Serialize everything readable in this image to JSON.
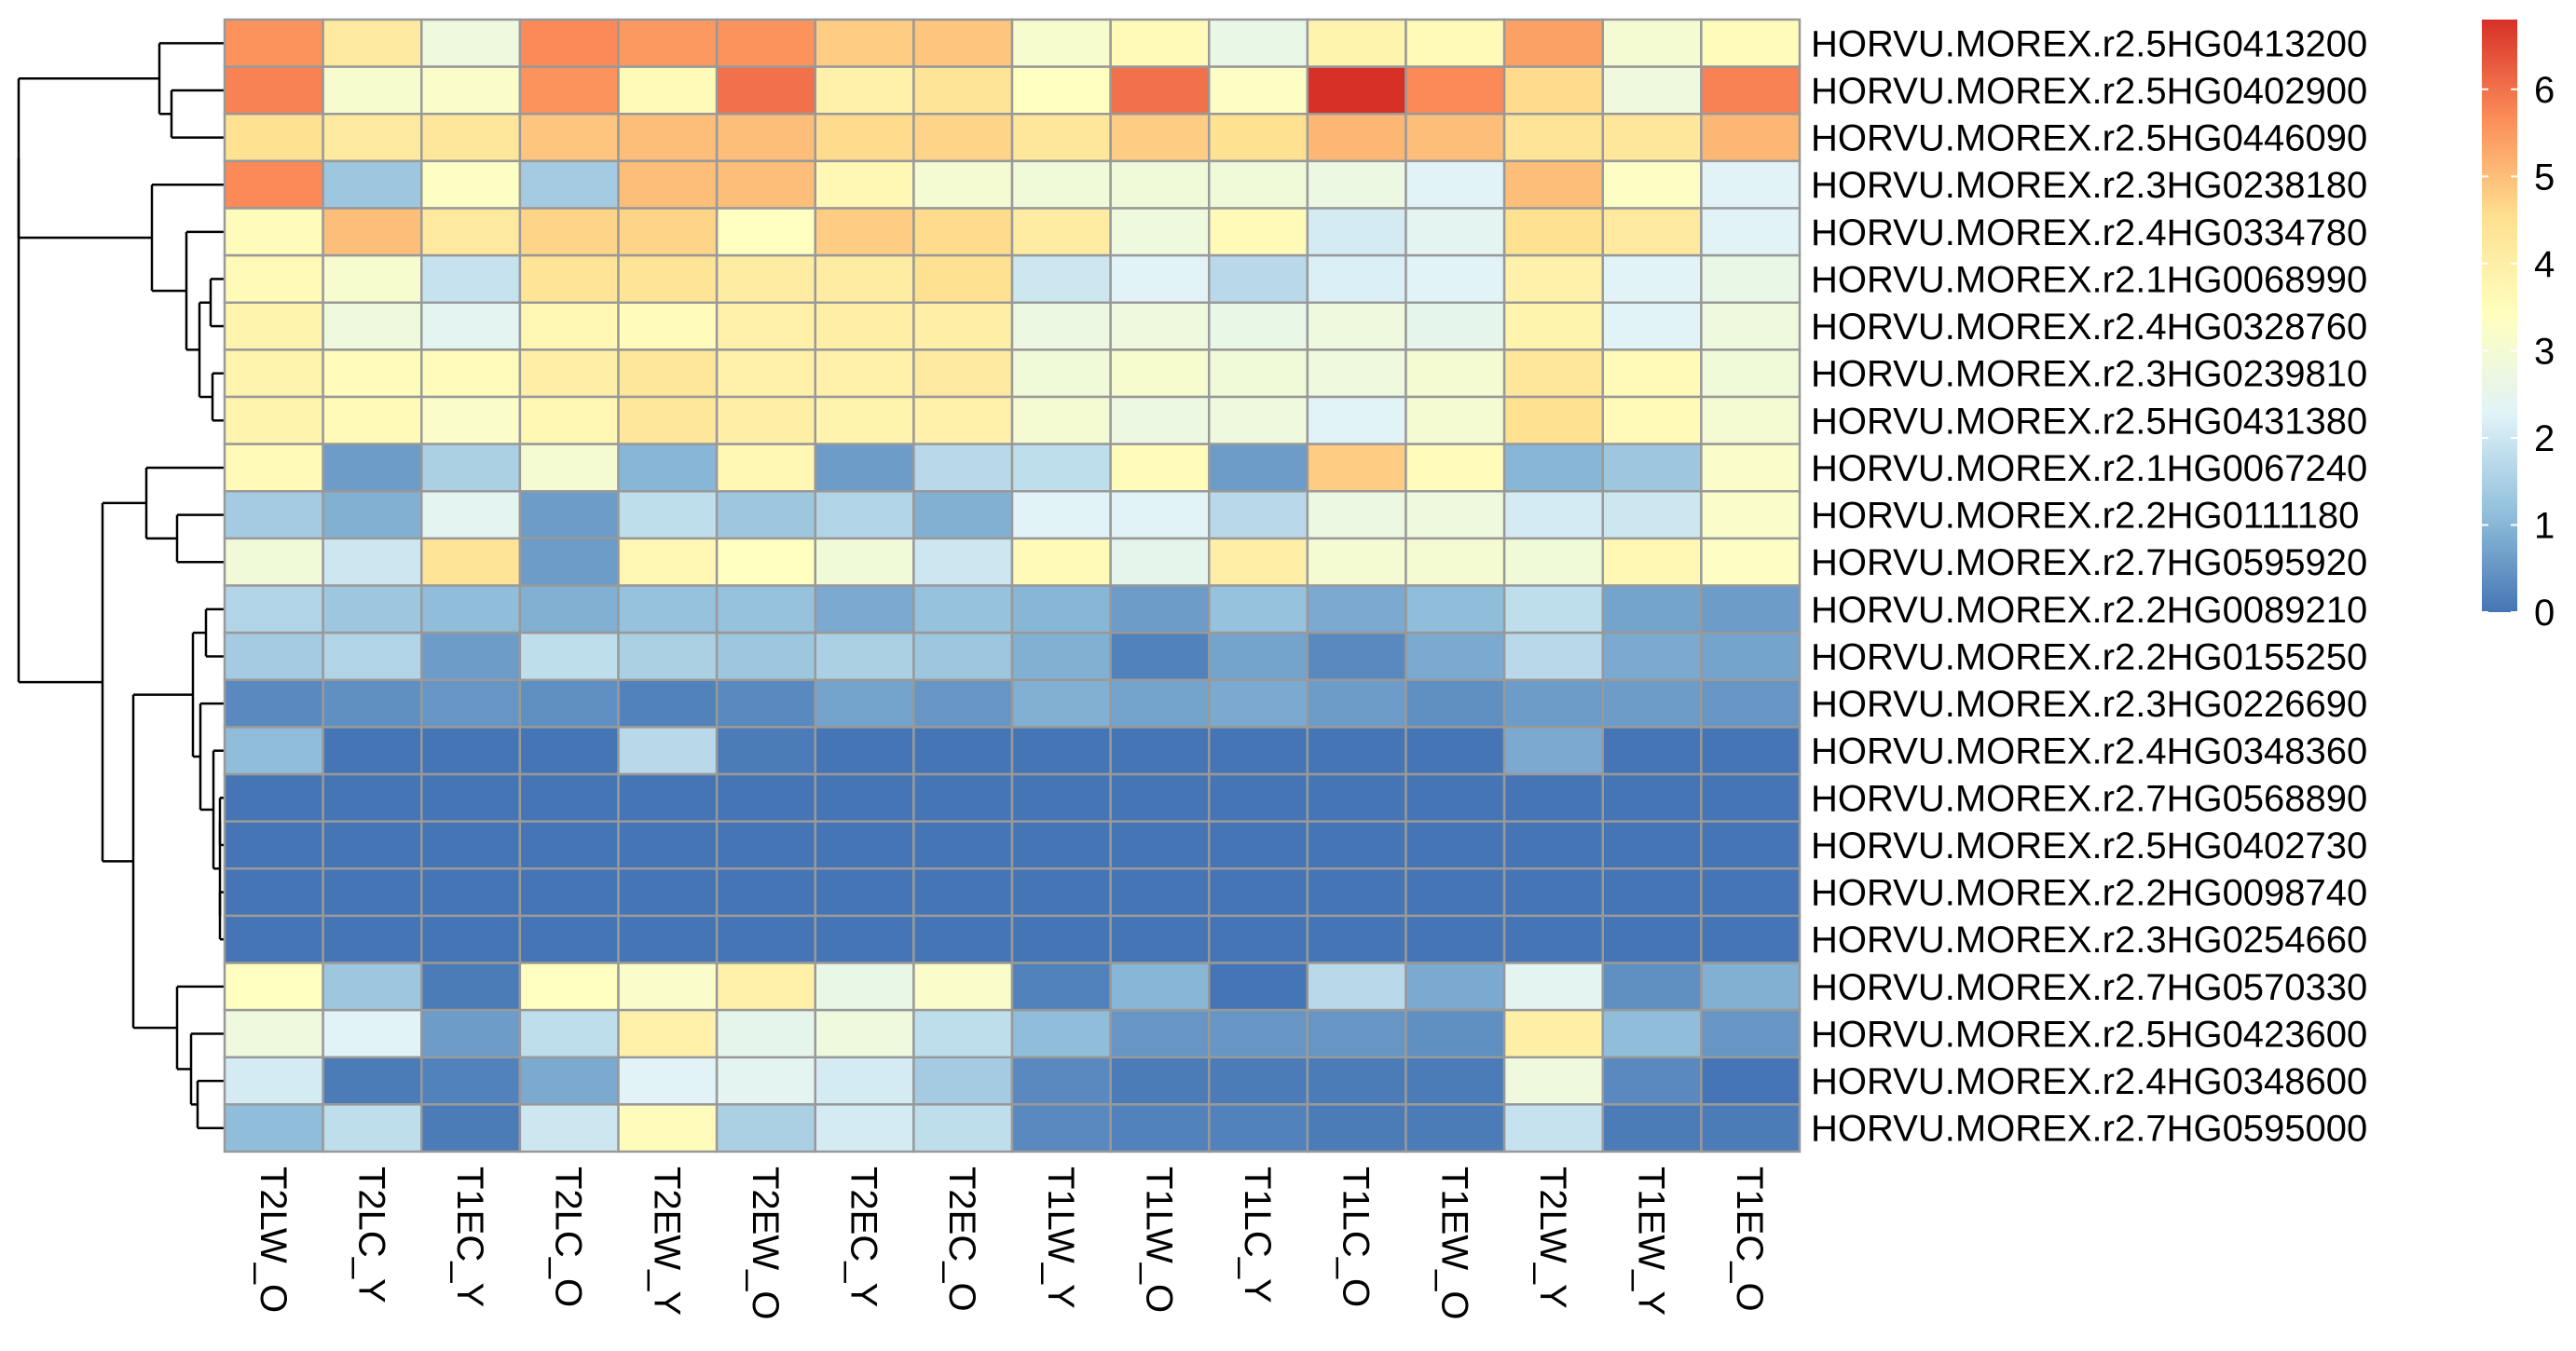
{
  "chart_data": {
    "type": "heatmap",
    "title": "",
    "xlabel": "",
    "ylabel": "",
    "columns": [
      "T2LW_O",
      "T2LC_Y",
      "T1EC_Y",
      "T2LC_O",
      "T2EW_Y",
      "T2EW_O",
      "T2EC_Y",
      "T2EC_O",
      "T1LW_Y",
      "T1LW_O",
      "T1LC_Y",
      "T1LC_O",
      "T1EW_O",
      "T2LW_Y",
      "T1EW_Y",
      "T1EC_O"
    ],
    "rows": [
      "HORVU.MOREX.r2.5HG0413200",
      "HORVU.MOREX.r2.5HG0402900",
      "HORVU.MOREX.r2.5HG0446090",
      "HORVU.MOREX.r2.3HG0238180",
      "HORVU.MOREX.r2.4HG0334780",
      "HORVU.MOREX.r2.1HG0068990",
      "HORVU.MOREX.r2.4HG0328760",
      "HORVU.MOREX.r2.3HG0239810",
      "HORVU.MOREX.r2.5HG0431380",
      "HORVU.MOREX.r2.1HG0067240",
      "HORVU.MOREX.r2.2HG0111180",
      "HORVU.MOREX.r2.7HG0595920",
      "HORVU.MOREX.r2.2HG0089210",
      "HORVU.MOREX.r2.2HG0155250",
      "HORVU.MOREX.r2.3HG0226690",
      "HORVU.MOREX.r2.4HG0348360",
      "HORVU.MOREX.r2.7HG0568890",
      "HORVU.MOREX.r2.5HG0402730",
      "HORVU.MOREX.r2.2HG0098740",
      "HORVU.MOREX.r2.3HG0254660",
      "HORVU.MOREX.r2.7HG0570330",
      "HORVU.MOREX.r2.5HG0423600",
      "HORVU.MOREX.r2.4HG0348600",
      "HORVU.MOREX.r2.7HG0595000"
    ],
    "values": [
      [
        5.6,
        4.2,
        2.8,
        5.7,
        5.5,
        5.6,
        4.8,
        4.9,
        3.1,
        3.6,
        2.6,
        3.8,
        3.6,
        5.4,
        3.0,
        3.5
      ],
      [
        5.8,
        3.1,
        3.2,
        5.6,
        3.6,
        6.0,
        3.9,
        4.4,
        3.4,
        6.0,
        3.3,
        6.8,
        5.7,
        4.6,
        2.8,
        5.8
      ],
      [
        4.5,
        4.2,
        4.3,
        4.9,
        5.0,
        5.0,
        4.6,
        4.7,
        4.3,
        4.8,
        4.5,
        5.1,
        5.0,
        4.4,
        4.3,
        5.1
      ],
      [
        5.7,
        1.3,
        3.3,
        1.4,
        5.0,
        5.0,
        3.7,
        3.0,
        2.9,
        2.9,
        2.9,
        2.7,
        2.3,
        5.0,
        3.3,
        2.3
      ],
      [
        3.5,
        5.0,
        4.2,
        4.7,
        4.7,
        3.4,
        4.8,
        4.6,
        4.1,
        2.8,
        3.6,
        2.1,
        2.4,
        4.5,
        4.2,
        2.3
      ],
      [
        3.6,
        3.1,
        1.9,
        4.4,
        4.4,
        4.1,
        4.1,
        4.5,
        2.0,
        2.3,
        1.7,
        2.2,
        2.3,
        3.9,
        2.3,
        2.6
      ],
      [
        3.8,
        2.8,
        2.4,
        3.7,
        3.5,
        3.9,
        4.0,
        4.0,
        2.7,
        2.8,
        2.6,
        2.8,
        2.5,
        3.8,
        2.3,
        2.8
      ],
      [
        3.8,
        3.5,
        3.5,
        4.0,
        4.3,
        3.9,
        3.9,
        4.2,
        2.9,
        3.1,
        2.9,
        2.8,
        3.0,
        4.3,
        3.6,
        2.9
      ],
      [
        3.8,
        3.6,
        3.2,
        3.7,
        4.3,
        4.0,
        3.8,
        3.9,
        3.0,
        2.7,
        2.8,
        2.3,
        3.0,
        4.5,
        3.6,
        3.0
      ],
      [
        3.6,
        0.6,
        1.5,
        3.0,
        1.0,
        3.7,
        0.6,
        1.7,
        1.8,
        3.5,
        0.6,
        4.8,
        3.5,
        1.0,
        1.3,
        3.2
      ],
      [
        1.4,
        0.9,
        2.4,
        0.6,
        1.8,
        1.3,
        1.6,
        0.9,
        2.3,
        2.3,
        1.7,
        2.7,
        2.8,
        2.1,
        2.0,
        3.2
      ],
      [
        2.9,
        2.0,
        4.4,
        0.6,
        3.7,
        3.4,
        2.9,
        2.0,
        3.6,
        2.5,
        4.0,
        3.0,
        3.0,
        2.9,
        3.7,
        3.3
      ],
      [
        1.6,
        1.3,
        1.1,
        0.9,
        1.2,
        1.2,
        0.8,
        1.2,
        1.0,
        0.6,
        1.2,
        0.8,
        1.1,
        1.8,
        0.7,
        0.6
      ],
      [
        1.4,
        1.6,
        0.6,
        1.8,
        1.5,
        1.3,
        1.5,
        1.3,
        0.9,
        0.2,
        0.7,
        0.3,
        0.8,
        1.7,
        0.8,
        0.7
      ],
      [
        0.3,
        0.4,
        0.5,
        0.4,
        0.2,
        0.3,
        0.7,
        0.5,
        0.9,
        0.7,
        0.8,
        0.6,
        0.4,
        0.6,
        0.6,
        0.5
      ],
      [
        1.1,
        0.0,
        0.0,
        0.0,
        1.7,
        0.1,
        0.0,
        0.0,
        0.0,
        0.0,
        0.0,
        0.0,
        0.0,
        0.8,
        0.0,
        0.0
      ],
      [
        0.0,
        0.0,
        0.0,
        0.0,
        0.0,
        0.0,
        0.0,
        0.0,
        0.0,
        0.0,
        0.0,
        0.0,
        0.0,
        0.0,
        0.0,
        0.0
      ],
      [
        0.0,
        0.0,
        0.0,
        0.0,
        0.0,
        0.0,
        0.0,
        0.0,
        0.0,
        0.0,
        0.0,
        0.0,
        0.0,
        0.0,
        0.0,
        0.0
      ],
      [
        0.0,
        0.0,
        0.0,
        0.0,
        0.0,
        0.0,
        0.0,
        0.0,
        0.0,
        0.0,
        0.0,
        0.0,
        0.0,
        0.0,
        0.0,
        0.0
      ],
      [
        0.0,
        0.0,
        0.0,
        0.0,
        0.0,
        0.0,
        0.0,
        0.0,
        0.0,
        0.0,
        0.0,
        0.0,
        0.0,
        0.0,
        0.0,
        0.0
      ],
      [
        3.4,
        1.3,
        0.1,
        3.4,
        3.2,
        3.9,
        2.6,
        3.2,
        0.2,
        1.0,
        0.0,
        1.7,
        0.8,
        2.4,
        0.4,
        0.9
      ],
      [
        2.8,
        2.3,
        0.6,
        1.8,
        3.9,
        2.5,
        2.8,
        1.8,
        1.1,
        0.5,
        0.5,
        0.5,
        0.4,
        4.0,
        1.1,
        0.5
      ],
      [
        2.1,
        0.1,
        0.2,
        0.8,
        2.3,
        2.4,
        2.1,
        1.4,
        0.3,
        0.1,
        0.1,
        0.1,
        0.1,
        2.8,
        0.3,
        0.0
      ],
      [
        1.1,
        1.8,
        0.1,
        2.0,
        3.5,
        1.5,
        2.1,
        1.8,
        0.3,
        0.2,
        0.2,
        0.1,
        0.1,
        1.9,
        0.1,
        0.1
      ]
    ],
    "scale": {
      "min": 0,
      "max": 6.8,
      "ticks": [
        0,
        1,
        2,
        3,
        4,
        5,
        6
      ]
    },
    "colors": [
      "#4575B4",
      "#91BFDB",
      "#E0F3F8",
      "#FFFFBF",
      "#FEE090",
      "#FC8D59",
      "#D73027"
    ],
    "cell_border_color": "#999999",
    "row_dendrogram": true,
    "legend": "right"
  }
}
